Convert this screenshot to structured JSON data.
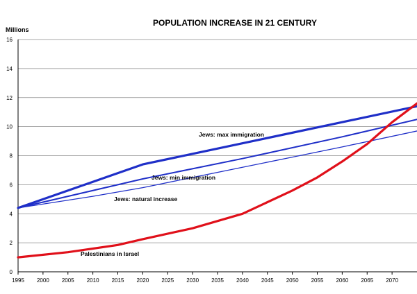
{
  "chart_data": {
    "type": "line",
    "title": "POPULATION INCREASE IN 21 CENTURY",
    "ylabel": "Millions",
    "xlabel": "",
    "xlim": [
      1995,
      2075
    ],
    "ylim": [
      0,
      16
    ],
    "grid": "horizontal",
    "x_ticks": [
      "1995",
      "2000",
      "2005",
      "2010",
      "2015",
      "2020",
      "2025",
      "2030",
      "2035",
      "2040",
      "2045",
      "2050",
      "2055",
      "2060",
      "2065",
      "2070"
    ],
    "y_ticks": [
      "0",
      "2",
      "4",
      "6",
      "8",
      "10",
      "12",
      "14",
      "16"
    ],
    "series": [
      {
        "name": "Jews: max immigration",
        "color": "#1f2fc8",
        "x": [
          1995,
          2020,
          2075
        ],
        "values": [
          4.4,
          7.4,
          11.4
        ]
      },
      {
        "name": "Jews: min immigration",
        "color": "#1f2fc8",
        "x": [
          1995,
          2020,
          2040,
          2060,
          2075
        ],
        "values": [
          4.4,
          6.4,
          7.8,
          9.3,
          10.5
        ]
      },
      {
        "name": "Jews: natural increase",
        "color": "#1f2fc8",
        "x": [
          1995,
          2010,
          2020,
          2030,
          2040,
          2050,
          2060,
          2075
        ],
        "values": [
          4.4,
          5.2,
          5.8,
          6.5,
          7.2,
          7.9,
          8.6,
          9.7
        ]
      },
      {
        "name": "Palestinians in Israel",
        "color": "#e0101a",
        "x": [
          1995,
          2005,
          2015,
          2020,
          2030,
          2040,
          2050,
          2055,
          2060,
          2065,
          2070,
          2075
        ],
        "values": [
          1.0,
          1.35,
          1.85,
          2.25,
          3.0,
          4.0,
          5.6,
          6.5,
          7.6,
          8.8,
          10.3,
          11.6
        ]
      }
    ]
  }
}
